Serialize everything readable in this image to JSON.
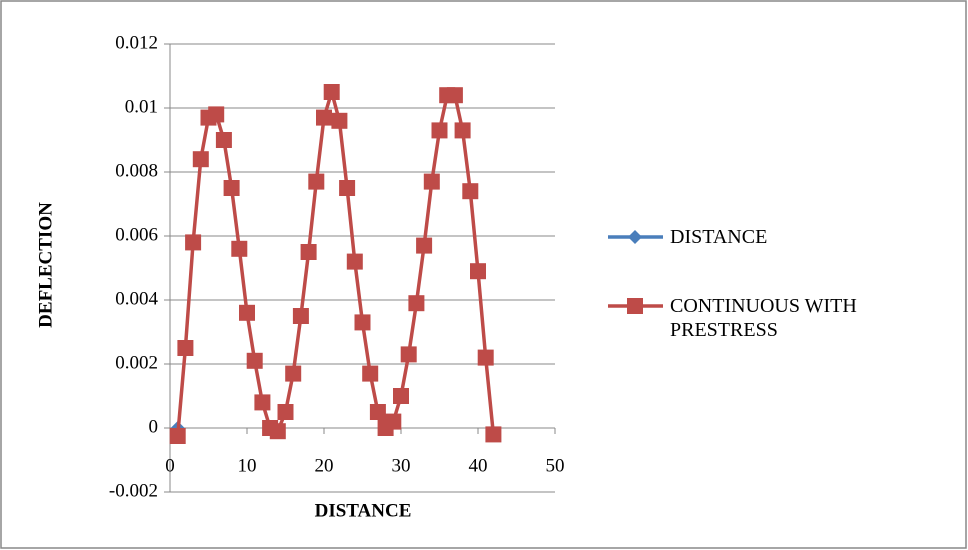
{
  "chart_data": {
    "type": "line",
    "x_label": "DISTANCE",
    "y_label": "DEFLECTION",
    "xlim": [
      0,
      50
    ],
    "xticks": [
      0,
      10,
      20,
      30,
      40,
      50
    ],
    "ylim": [
      -0.002,
      0.012
    ],
    "yticks": [
      -0.002,
      0,
      0.002,
      0.004,
      0.006,
      0.008,
      0.01,
      0.012
    ],
    "grid": true,
    "legend": "right",
    "series": [
      {
        "name": "DISTANCE",
        "color": "#4a7ebb",
        "marker": "diamond",
        "x": [
          1
        ],
        "values": [
          0
        ]
      },
      {
        "name": "CONTINUOUS WITH PRESTRESS",
        "color": "#be4b48",
        "marker": "square",
        "x": [
          1,
          2,
          3,
          4,
          5,
          6,
          7,
          8,
          9,
          10,
          11,
          12,
          13,
          14,
          15,
          16,
          17,
          18,
          19,
          20,
          21,
          22,
          23,
          24,
          25,
          26,
          27,
          28,
          29,
          30,
          31,
          32,
          33,
          34,
          35,
          36,
          37,
          38,
          39,
          40,
          41,
          42
        ],
        "values": [
          -0.00025,
          0.0025,
          0.0058,
          0.0084,
          0.0097,
          0.0098,
          0.009,
          0.0075,
          0.0056,
          0.0036,
          0.0021,
          0.0008,
          0.0,
          -0.0001,
          0.0005,
          0.0017,
          0.0035,
          0.0055,
          0.0077,
          0.0097,
          0.0105,
          0.0096,
          0.0075,
          0.0052,
          0.0033,
          0.0017,
          0.0005,
          0.0,
          0.0002,
          0.001,
          0.0023,
          0.0039,
          0.0057,
          0.0077,
          0.0093,
          0.0104,
          0.0104,
          0.0093,
          0.0074,
          0.0049,
          0.0022,
          -0.0002
        ]
      }
    ]
  }
}
